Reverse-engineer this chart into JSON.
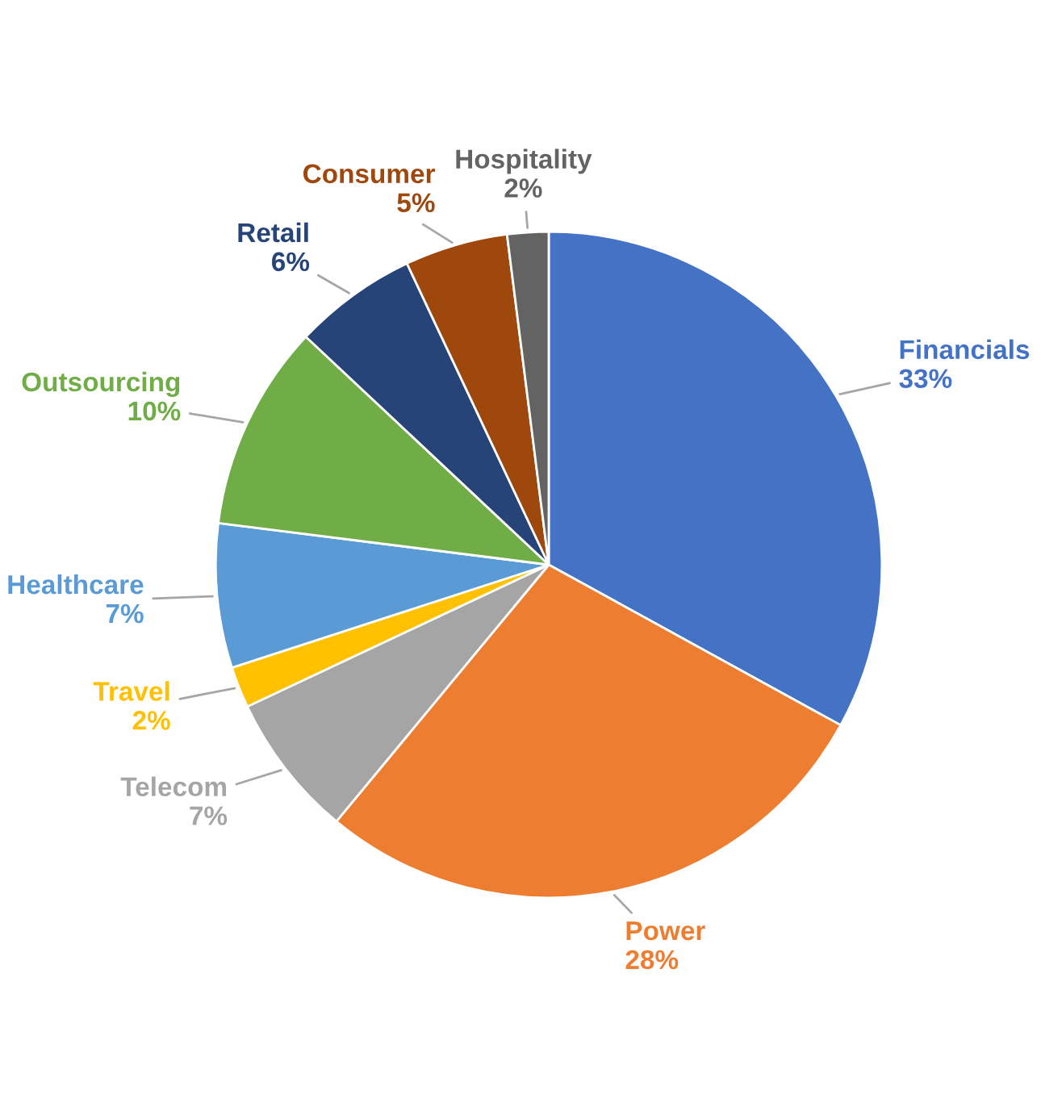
{
  "chart_data": {
    "type": "pie",
    "categories": [
      "Financials",
      "Power",
      "Telecom",
      "Travel",
      "Healthcare",
      "Outsourcing",
      "Retail",
      "Consumer",
      "Hospitality"
    ],
    "values": [
      33,
      28,
      7,
      2,
      7,
      10,
      6,
      5,
      2
    ],
    "value_labels": [
      "33%",
      "28%",
      "7%",
      "2%",
      "7%",
      "10%",
      "6%",
      "5%",
      "2%"
    ],
    "colors": [
      "#4472c4",
      "#ed7d31",
      "#a5a5a5",
      "#ffc000",
      "#5b9bd5",
      "#70ad47",
      "#264478",
      "#9e480e",
      "#636363"
    ],
    "legend": false
  }
}
